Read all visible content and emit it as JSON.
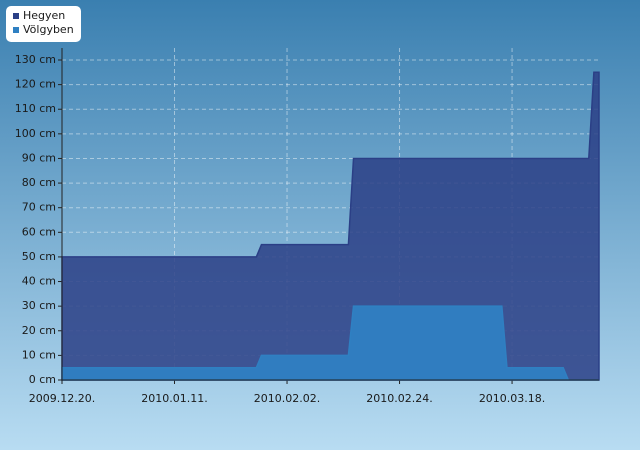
{
  "chart_data": {
    "type": "area",
    "x": [
      "2009.12.20.",
      "2010.01.27.",
      "2010.01.28.",
      "2010.02.14.",
      "2010.02.15.",
      "2010.03.16.",
      "2010.03.17.",
      "2010.03.28.",
      "2010.03.29.",
      "2010.04.02.",
      "2010.04.03.",
      "2010.04.04."
    ],
    "series": [
      {
        "name": "Hegyen",
        "color": "#2b3f86",
        "values": [
          50,
          50,
          55,
          55,
          90,
          90,
          90,
          90,
          90,
          90,
          125,
          125
        ]
      },
      {
        "name": "Völgyben",
        "color": "#2f80c2",
        "values": [
          5,
          5,
          10,
          10,
          30,
          30,
          5,
          5,
          0,
          0,
          0,
          0
        ]
      }
    ],
    "xlim": [
      "2009.12.20.",
      "2010.04.04."
    ],
    "xticks": [
      "2009.12.20.",
      "2010.01.11.",
      "2010.02.02.",
      "2010.02.24.",
      "2010.03.18."
    ],
    "ylim": [
      0,
      130
    ],
    "yticks": [
      {
        "value": 0,
        "label": "0 cm"
      },
      {
        "value": 10,
        "label": "10 cm"
      },
      {
        "value": 20,
        "label": "20 cm"
      },
      {
        "value": 30,
        "label": "30 cm"
      },
      {
        "value": 40,
        "label": "40 cm"
      },
      {
        "value": 50,
        "label": "50 cm"
      },
      {
        "value": 60,
        "label": "60 cm"
      },
      {
        "value": 70,
        "label": "70 cm"
      },
      {
        "value": 80,
        "label": "80 cm"
      },
      {
        "value": 90,
        "label": "90 cm"
      },
      {
        "value": 100,
        "label": "100 cm"
      },
      {
        "value": 110,
        "label": "110 cm"
      },
      {
        "value": 120,
        "label": "120 cm"
      },
      {
        "value": 130,
        "label": "130 cm"
      }
    ],
    "grid": true,
    "legend": "top-left"
  }
}
